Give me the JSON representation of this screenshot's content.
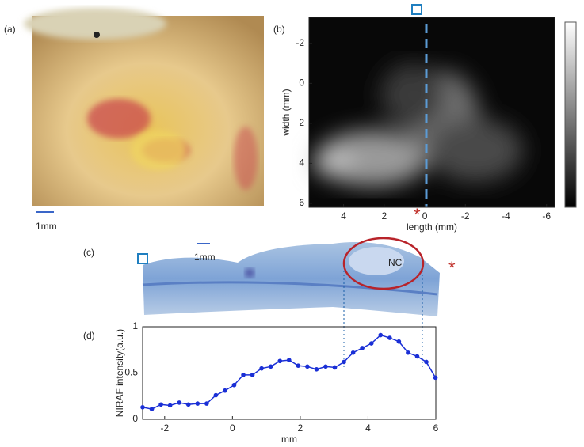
{
  "panel_labels": {
    "a": "(a)",
    "b": "(b)",
    "c": "(c)",
    "d": "(d)"
  },
  "scale_bars": [
    "1mm",
    "1mm"
  ],
  "annotations": {
    "necrotic_core": "NC",
    "marker": "*"
  },
  "chart_data": [
    {
      "type": "heatmap",
      "xlabel": "length (mm)",
      "ylabel": "width (mm)",
      "xlim": [
        5.7,
        -6.4
      ],
      "ylim": [
        -3.3,
        6.2
      ],
      "xticks": [
        4,
        2,
        0,
        -2,
        -4,
        -6
      ],
      "yticks": [
        -2,
        0,
        2,
        4,
        6
      ]
    },
    {
      "type": "line",
      "xlabel": "mm",
      "ylabel": "NIRAF intensity(a.u.)",
      "xlim": [
        -2.65,
        6
      ],
      "ylim": [
        0,
        1
      ],
      "xticks": [
        -2,
        0,
        2,
        4,
        6
      ],
      "yticks": [
        0,
        0.5,
        1
      ],
      "x": [
        -2.65,
        -2.38,
        -2.11,
        -1.84,
        -1.57,
        -1.3,
        -1.03,
        -0.76,
        -0.49,
        -0.22,
        0.05,
        0.32,
        0.59,
        0.86,
        1.13,
        1.4,
        1.67,
        1.94,
        2.21,
        2.48,
        2.75,
        3.02,
        3.29,
        3.56,
        3.83,
        4.1,
        4.37,
        4.64,
        4.91,
        5.18,
        5.45,
        5.72,
        5.99
      ],
      "series": [
        {
          "color": "#1a2fd6",
          "values": [
            0.13,
            0.11,
            0.16,
            0.15,
            0.18,
            0.16,
            0.17,
            0.17,
            0.26,
            0.31,
            0.37,
            0.48,
            0.48,
            0.55,
            0.57,
            0.63,
            0.64,
            0.58,
            0.57,
            0.54,
            0.57,
            0.56,
            0.62,
            0.72,
            0.77,
            0.82,
            0.91,
            0.88,
            0.84,
            0.72,
            0.68,
            0.62,
            0.45
          ]
        }
      ]
    }
  ]
}
